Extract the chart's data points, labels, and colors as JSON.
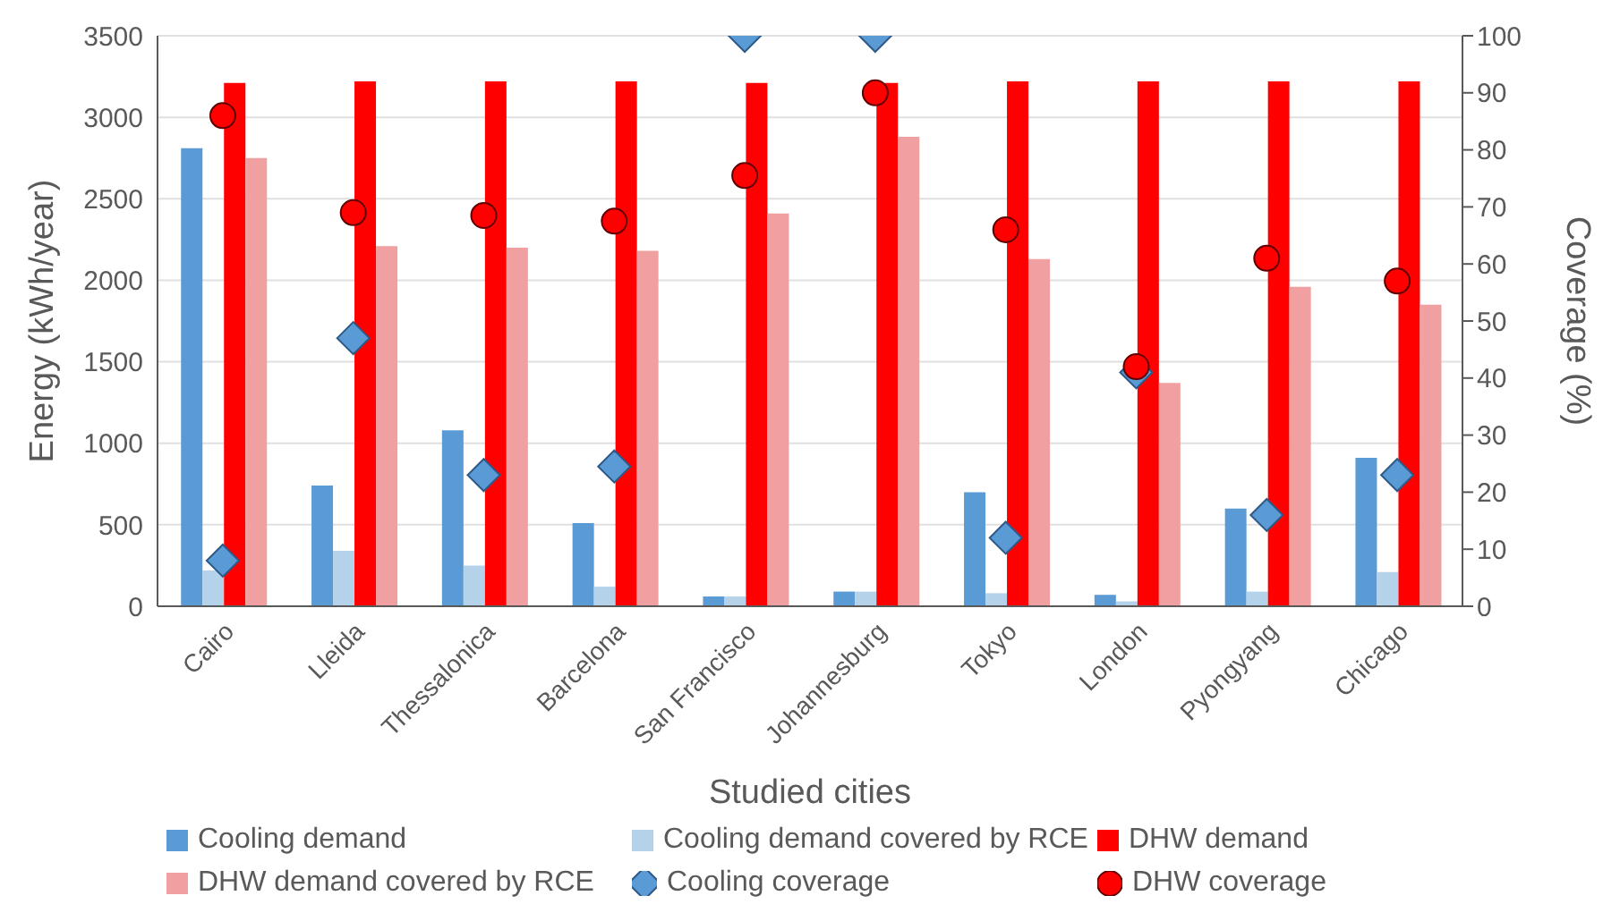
{
  "chart_data": {
    "type": "bar",
    "xlabel": "Studied cities",
    "ylabel": "Energy (kWh/year)",
    "y2label": "Coverage (%)",
    "categories": [
      "Cairo",
      "Lleida",
      "Thessalonica",
      "Barcelona",
      "San Francisco",
      "Johannesburg",
      "Tokyo",
      "London",
      "Pyongyang",
      "Chicago"
    ],
    "series": [
      {
        "name": "Cooling demand",
        "color": "#5b9bd5",
        "values": [
          2810,
          740,
          1080,
          510,
          60,
          90,
          700,
          70,
          600,
          910
        ]
      },
      {
        "name": "Cooling demand covered by RCE",
        "color": "#b4d3ea",
        "values": [
          220,
          340,
          250,
          120,
          60,
          90,
          80,
          30,
          90,
          210
        ]
      },
      {
        "name": "DHW demand",
        "color": "#ff0000",
        "values": [
          3210,
          3220,
          3220,
          3220,
          3210,
          3210,
          3220,
          3220,
          3220,
          3220
        ]
      },
      {
        "name": "DHW demand covered by RCE",
        "color": "#f0a0a0",
        "values": [
          2750,
          2210,
          2200,
          2180,
          2410,
          2880,
          2130,
          1370,
          1960,
          1850
        ]
      },
      {
        "name": "Cooling coverage",
        "type": "scatter",
        "axis": "y2",
        "marker": "diamond",
        "color": "#5b9bd5",
        "values": [
          8,
          47,
          23,
          24.5,
          100,
          100,
          12,
          41,
          16,
          23
        ]
      },
      {
        "name": "DHW coverage",
        "type": "scatter",
        "axis": "y2",
        "marker": "circle",
        "color": "#ff0000",
        "values": [
          86,
          69,
          68.5,
          67.5,
          75.5,
          90,
          66,
          42,
          61,
          57
        ]
      }
    ],
    "ylim": [
      0,
      3500
    ],
    "yticks": [
      0,
      500,
      1000,
      1500,
      2000,
      2500,
      3000,
      3500
    ],
    "y2lim": [
      0,
      100
    ],
    "y2ticks": [
      0,
      10,
      20,
      30,
      40,
      50,
      60,
      70,
      80,
      90,
      100
    ],
    "grid": "y",
    "legend": "bottom"
  }
}
